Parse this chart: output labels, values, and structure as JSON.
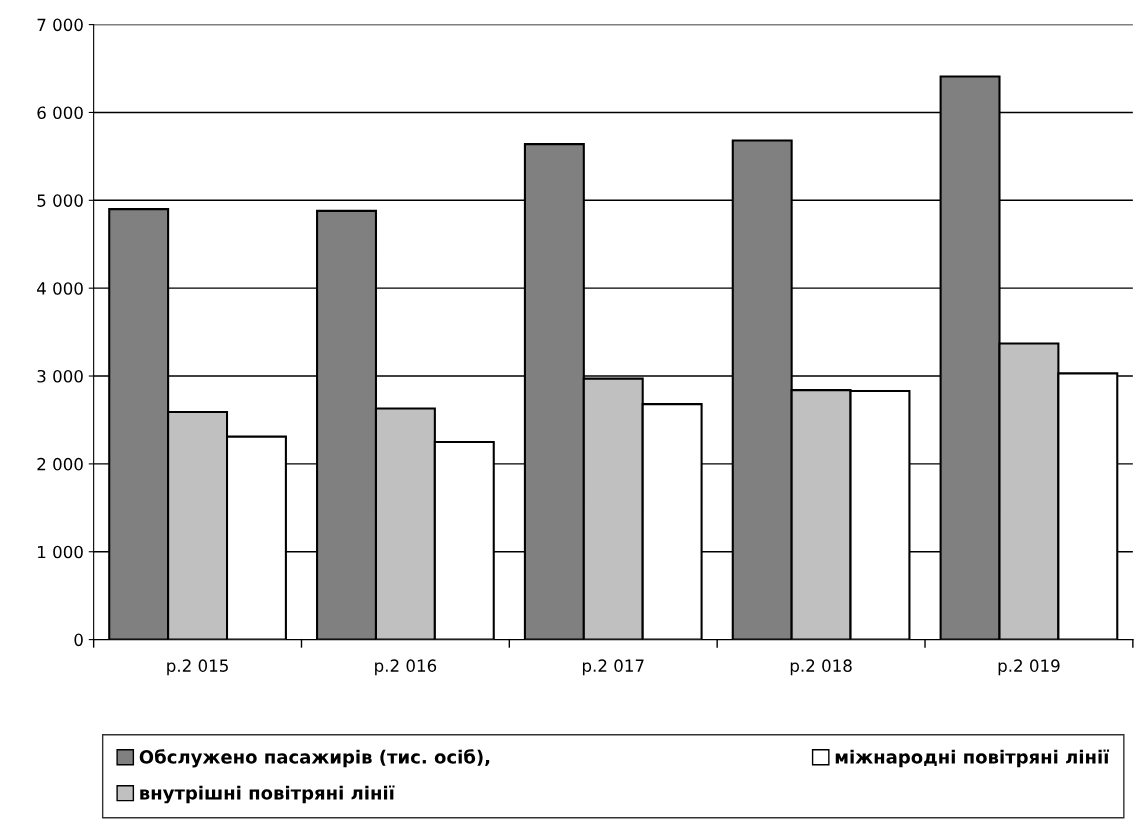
{
  "chart_data": {
    "type": "bar",
    "categories": [
      "р.2 015",
      "р.2 016",
      "р.2 017",
      "р.2 018",
      "р.2 019"
    ],
    "series": [
      {
        "name": "Обслужено пасажирів (тис. осіб),",
        "color": "#808080",
        "values": [
          4900,
          4880,
          5640,
          5680,
          6410
        ]
      },
      {
        "name": "внутрішні повітряні лінії",
        "color": "#c0c0c0",
        "values": [
          2590,
          2630,
          2970,
          2840,
          3370
        ]
      },
      {
        "name": "міжнародні повітряні лінії",
        "color": "#ffffff",
        "values": [
          2310,
          2250,
          2680,
          2830,
          3030
        ]
      }
    ],
    "ylim": [
      0,
      7000
    ],
    "yticks": [
      {
        "value": 0,
        "label": "0"
      },
      {
        "value": 1000,
        "label": "1 000"
      },
      {
        "value": 2000,
        "label": "2 000"
      },
      {
        "value": 3000,
        "label": "3 000"
      },
      {
        "value": 4000,
        "label": "4 000"
      },
      {
        "value": 5000,
        "label": "5 000"
      },
      {
        "value": 6000,
        "label": "6 000"
      },
      {
        "value": 7000,
        "label": "7 000"
      }
    ],
    "grid": "y",
    "legend": "bottom"
  }
}
